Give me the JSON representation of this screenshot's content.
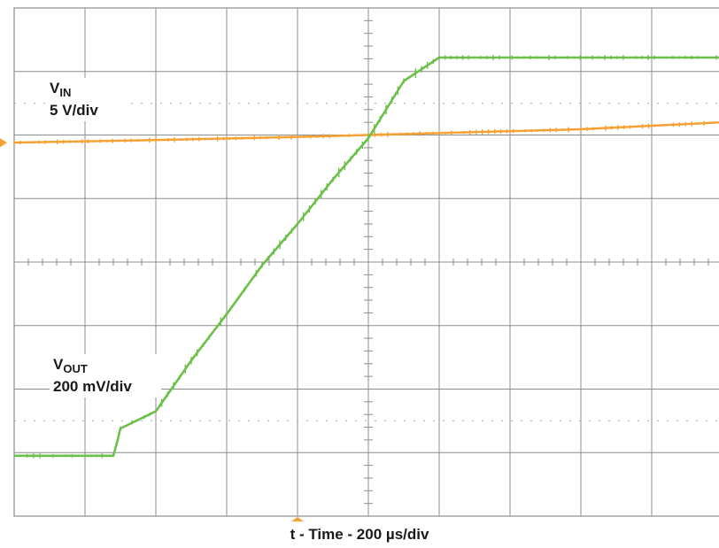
{
  "chart_data": {
    "type": "line",
    "title": "",
    "xlabel": "t - Time - 200 µs/div",
    "ylabel": "",
    "grid": true,
    "x_unit": "µs",
    "x_divisions": 10,
    "y_divisions": 8,
    "xlim": [
      0,
      2000
    ],
    "ylim": [
      -4,
      4
    ],
    "series": [
      {
        "name": "VIN",
        "scale": "5 V/div",
        "color": "#f5a030",
        "x": [
          0,
          400,
          800,
          1000,
          1200,
          1600,
          2000
        ],
        "y": [
          1.88,
          1.92,
          1.97,
          2.0,
          2.03,
          2.09,
          2.2
        ]
      },
      {
        "name": "VOUT",
        "scale": "200 mV/div",
        "color": "#6cc04a",
        "x": [
          0,
          200,
          280,
          290,
          300,
          400,
          500,
          600,
          700,
          800,
          900,
          1000,
          1100,
          1200,
          1300,
          2000
        ],
        "y": [
          -3.05,
          -3.05,
          -3.05,
          -2.85,
          -2.62,
          -2.35,
          -1.55,
          -0.82,
          -0.05,
          0.6,
          1.3,
          1.95,
          2.85,
          3.22,
          3.22,
          3.22
        ]
      }
    ]
  },
  "labels": {
    "vin_main": "V",
    "vin_sub": "IN",
    "vin_scale": "5 V/div",
    "vout_main": "V",
    "vout_sub": "OUT",
    "vout_scale": "200 mV/div"
  }
}
